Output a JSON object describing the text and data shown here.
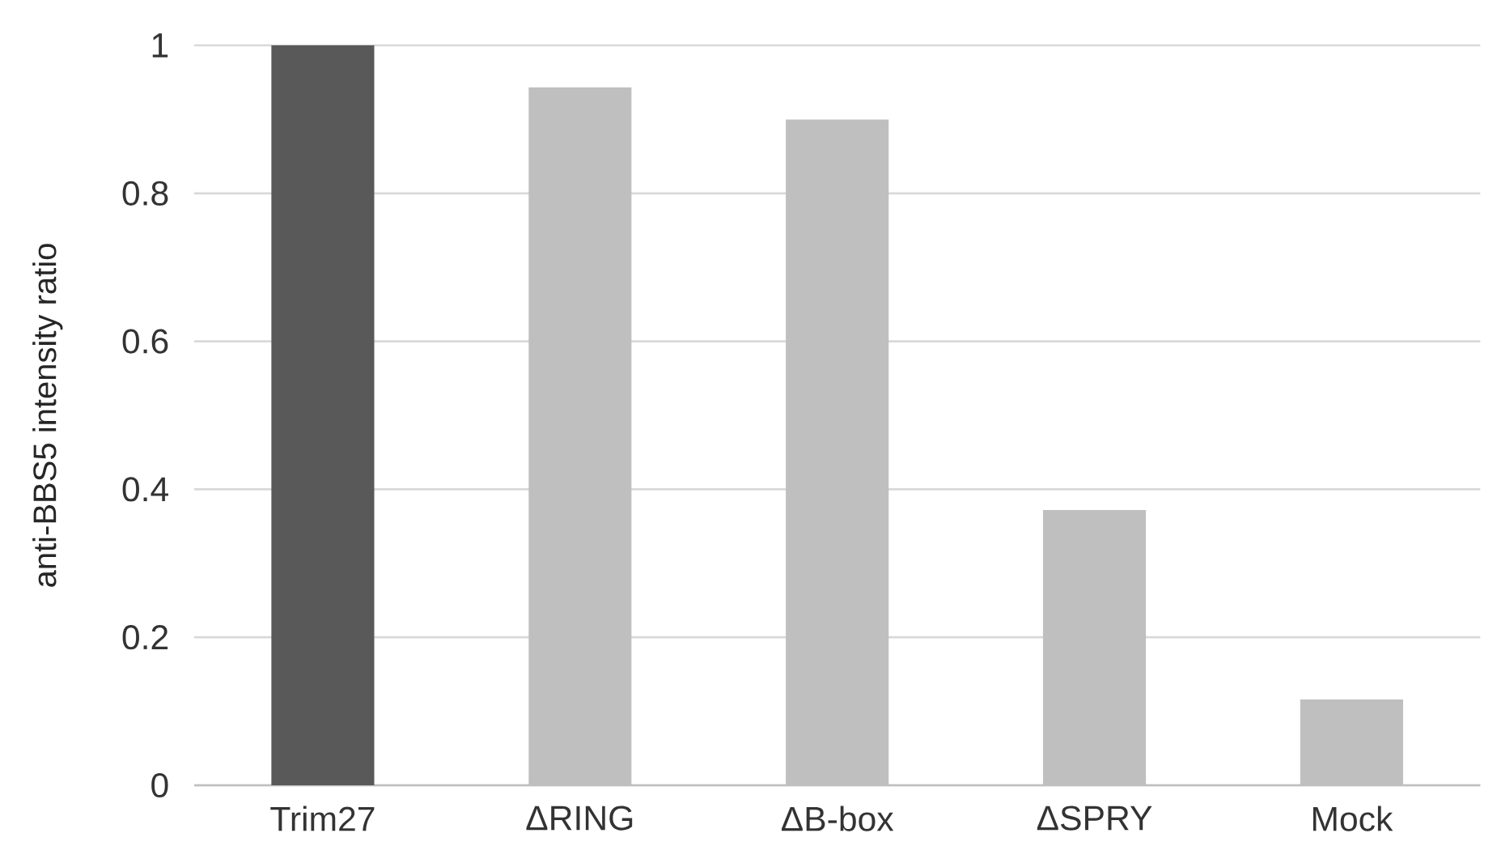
{
  "chart_data": {
    "type": "bar",
    "ylabel": "anti-BBS5 intensity ratio",
    "categories": [
      "Trim27",
      "ΔRING",
      "ΔB-box",
      "ΔSPRY",
      "Mock"
    ],
    "values": [
      1.0,
      0.943,
      0.9,
      0.372,
      0.116
    ],
    "colors": [
      "#595959",
      "#bfbfbf",
      "#bfbfbf",
      "#bfbfbf",
      "#bfbfbf"
    ],
    "ylim": [
      0,
      1
    ],
    "yticks": [
      0,
      0.2,
      0.4,
      0.6,
      0.8,
      1
    ],
    "grid": "y"
  }
}
